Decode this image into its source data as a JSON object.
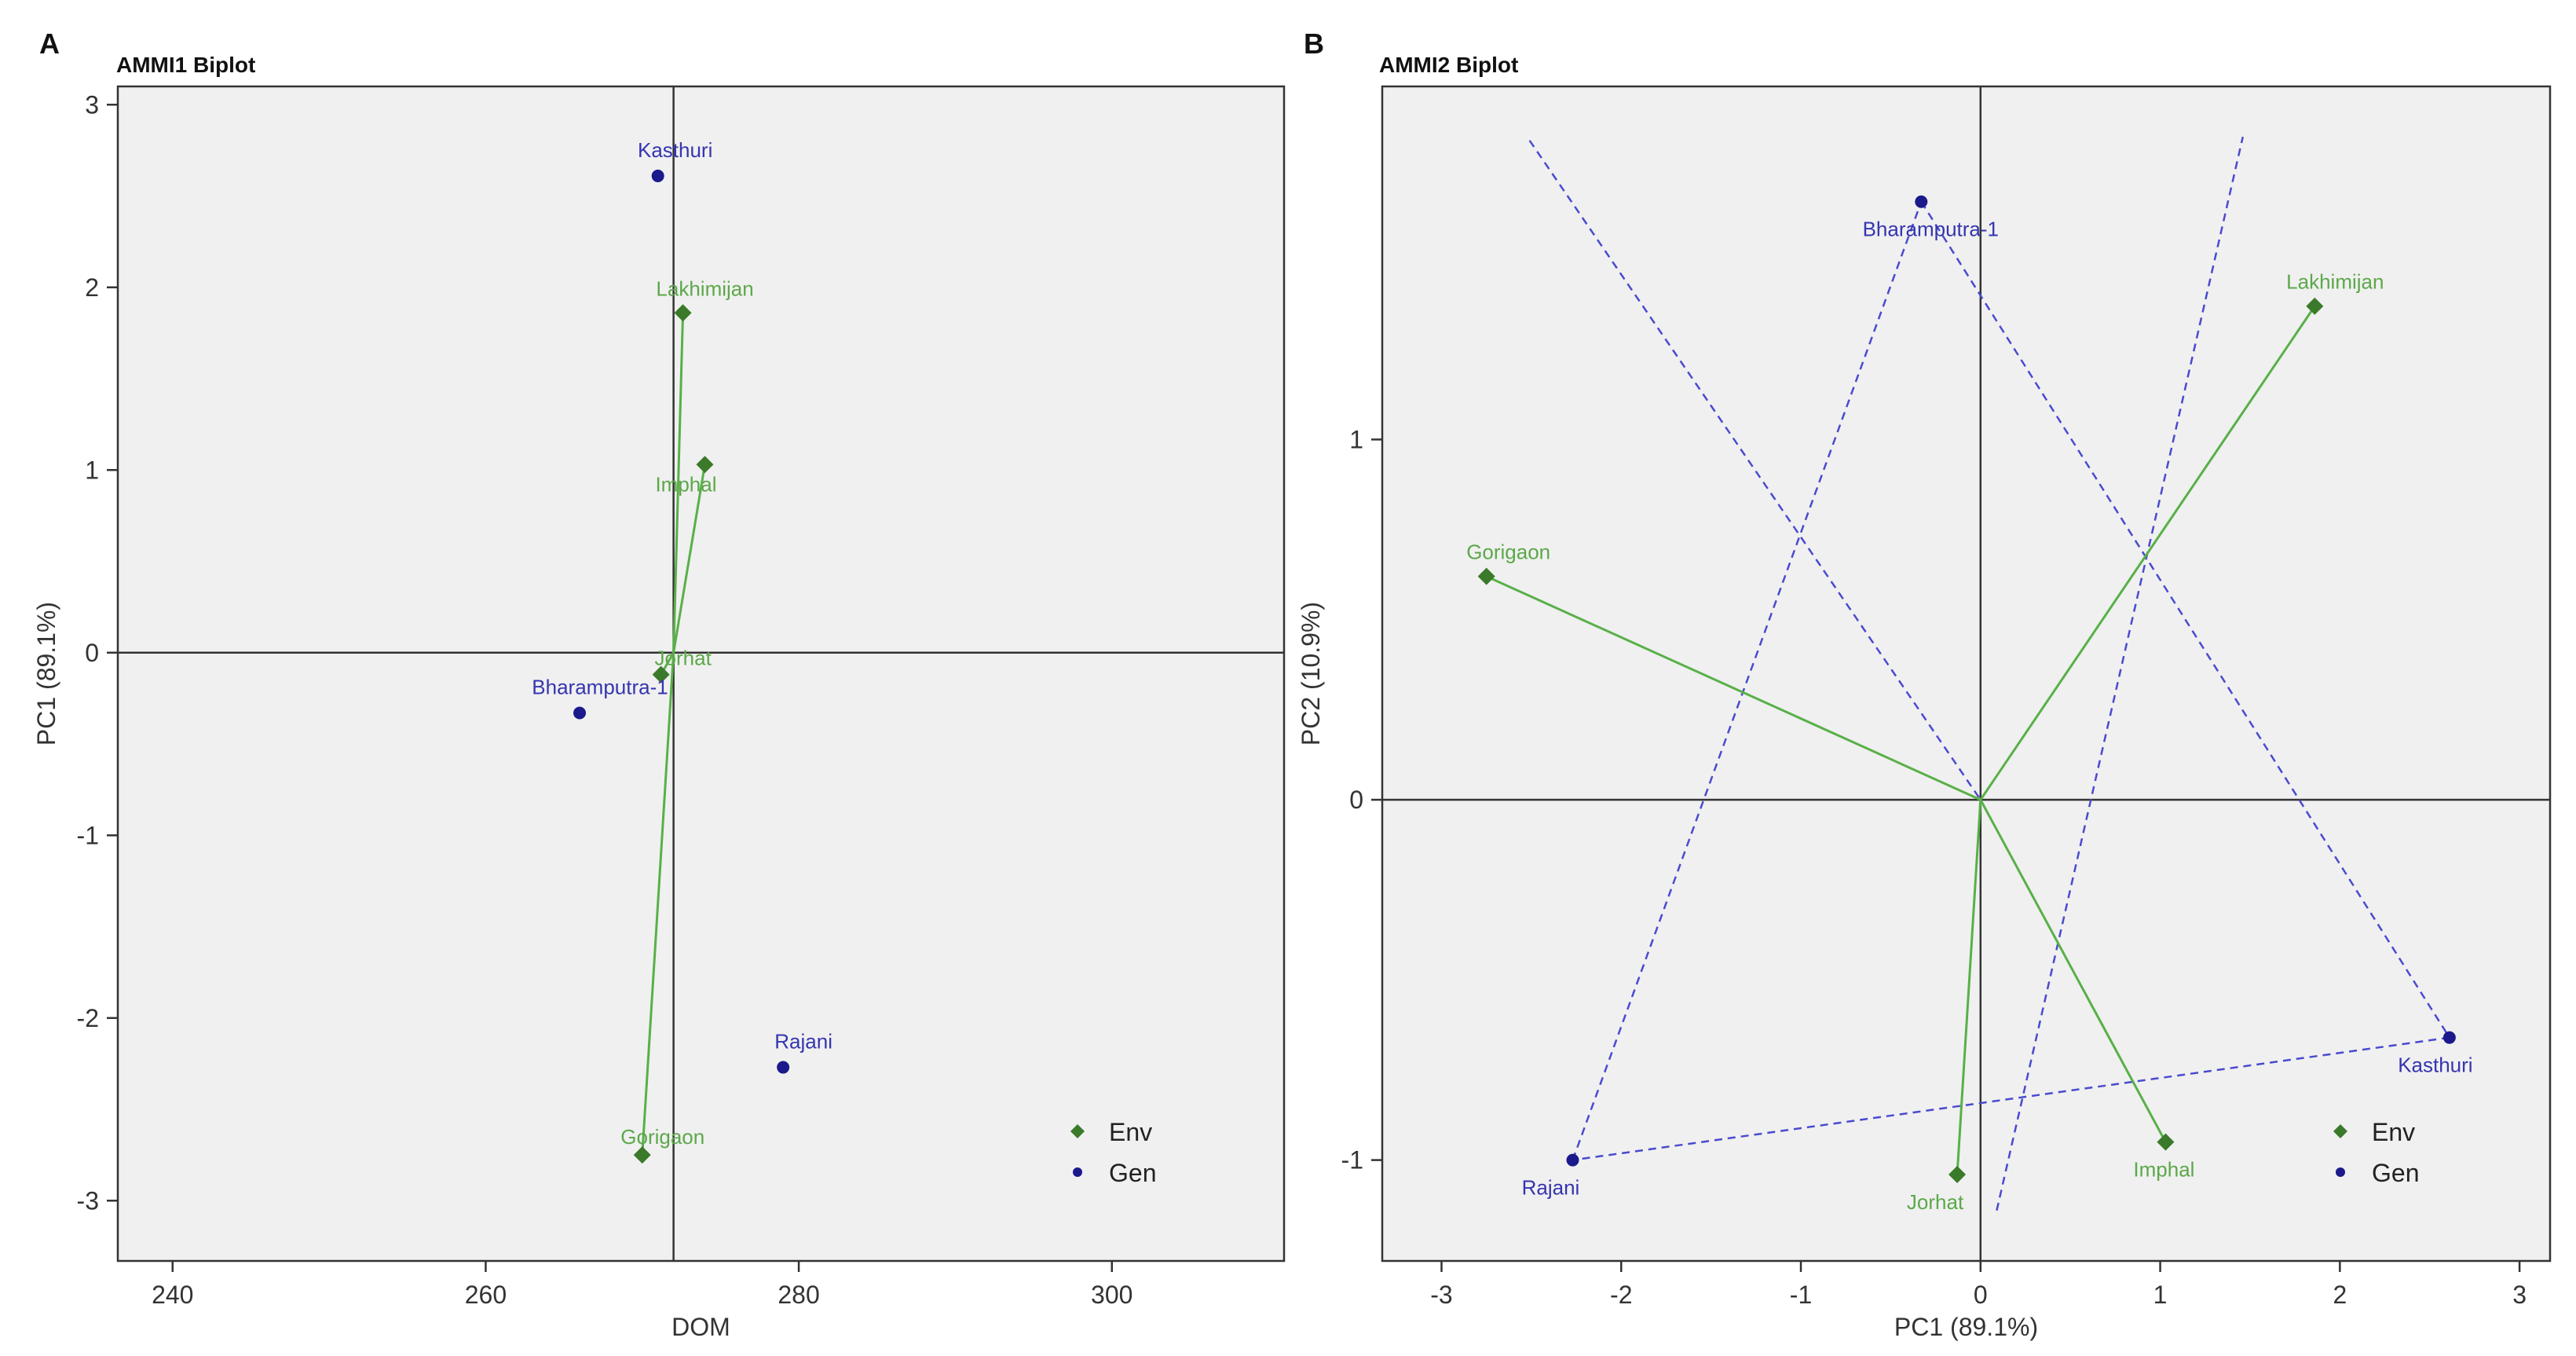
{
  "colors": {
    "env": "#3a7a2a",
    "env_line": "#58b048",
    "env_label": "#5ca84a",
    "gen": "#1a1a8c",
    "gen_label": "#3535b0",
    "gen_dash": "#4a4ad0",
    "panel_bg": "#f0f0f0",
    "axis": "#333333"
  },
  "chart_data": [
    {
      "panel": "A",
      "title": "AMMI1 Biplot",
      "type": "scatter",
      "xlabel": "DOM",
      "ylabel": "PC1 (89.1%)",
      "xlim": [
        236.5,
        311
      ],
      "ylim": [
        -3.33,
        3.1
      ],
      "xticks": [
        240,
        260,
        280,
        300
      ],
      "yticks": [
        -3,
        -2,
        -1,
        0,
        1,
        2,
        3
      ],
      "ref_lines": {
        "x": 272.0,
        "y": 0
      },
      "origin": [
        272.0,
        0
      ],
      "legend": {
        "placement": "bottom-right",
        "items": [
          "Env",
          "Gen"
        ]
      },
      "series": [
        {
          "name": "Env",
          "marker": "diamond",
          "vectors": true,
          "points": [
            {
              "label": "Lakhimijan",
              "x": 272.6,
              "y": 1.86
            },
            {
              "label": "Imphal",
              "x": 274.0,
              "y": 1.03
            },
            {
              "label": "Jorhat",
              "x": 271.2,
              "y": -0.12
            },
            {
              "label": "Gorigaon",
              "x": 270.0,
              "y": -2.75
            }
          ]
        },
        {
          "name": "Gen",
          "marker": "circle",
          "vectors": false,
          "points": [
            {
              "label": "Kasthuri",
              "x": 271.0,
              "y": 2.61
            },
            {
              "label": "Bharamputra-1",
              "x": 266.0,
              "y": -0.33
            },
            {
              "label": "Rajani",
              "x": 279.0,
              "y": -2.27
            }
          ]
        }
      ]
    },
    {
      "panel": "B",
      "title": "AMMI2 Biplot",
      "type": "scatter",
      "xlabel": "PC1 (89.1%)",
      "ylabel": "PC2 (10.9%)",
      "xlim": [
        -3.33,
        3.17
      ],
      "ylim": [
        -1.28,
        1.98
      ],
      "xticks": [
        -3,
        -2,
        -1,
        0,
        1,
        2,
        3
      ],
      "yticks": [
        -1,
        0,
        1
      ],
      "ref_lines": {
        "x": 0,
        "y": 0
      },
      "origin": [
        0,
        0
      ],
      "legend": {
        "placement": "bottom-right",
        "items": [
          "Env",
          "Gen"
        ]
      },
      "polygon": [
        "Bharamputra-1",
        "Kasthuri",
        "Rajani"
      ],
      "sector_lines": [
        {
          "from": [
            0.09,
            -1.14
          ],
          "to": [
            1.46,
            1.84
          ]
        },
        {
          "from": [
            -2.51,
            1.83
          ],
          "to": [
            0,
            0
          ]
        }
      ],
      "series": [
        {
          "name": "Env",
          "marker": "diamond",
          "vectors": true,
          "points": [
            {
              "label": "Lakhimijan",
              "x": 1.86,
              "y": 1.37
            },
            {
              "label": "Gorigaon",
              "x": -2.75,
              "y": 0.62
            },
            {
              "label": "Jorhat",
              "x": -0.13,
              "y": -1.04
            },
            {
              "label": "Imphal",
              "x": 1.03,
              "y": -0.95
            }
          ]
        },
        {
          "name": "Gen",
          "marker": "circle",
          "vectors": false,
          "points": [
            {
              "label": "Bharamputra-1",
              "x": -0.33,
              "y": 1.66
            },
            {
              "label": "Kasthuri",
              "x": 2.61,
              "y": -0.66
            },
            {
              "label": "Rajani",
              "x": -2.27,
              "y": -1.0
            }
          ]
        }
      ]
    }
  ]
}
